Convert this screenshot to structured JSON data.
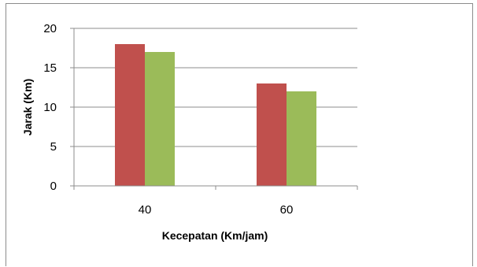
{
  "chart_data": {
    "type": "bar",
    "categories": [
      "40",
      "60"
    ],
    "series": [
      {
        "values": [
          18,
          13
        ],
        "color": "#c0504d"
      },
      {
        "values": [
          17,
          12
        ],
        "color": "#9bbb59"
      }
    ],
    "title": "",
    "xlabel": "Kecepatan (Km/jam)",
    "ylabel": "Jarak (Km)",
    "ylim": [
      0,
      20
    ],
    "yticks": [
      "0",
      "5",
      "10",
      "15",
      "20"
    ],
    "grid": true,
    "legend": "none"
  }
}
